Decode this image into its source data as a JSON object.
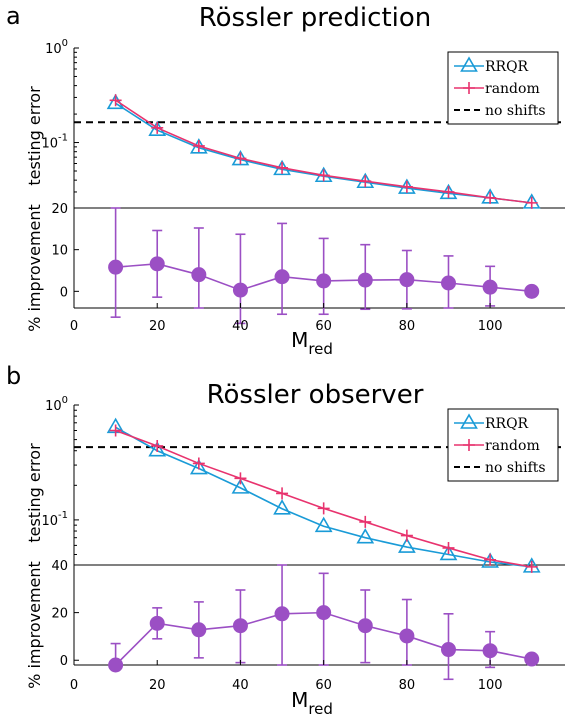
{
  "colors": {
    "rrqr": "#1a9bd7",
    "random": "#e8336e",
    "no_shifts": "#000000",
    "improvement": "#9b4fc4"
  },
  "chart_data": [
    {
      "type": "line",
      "panel_letter": "a",
      "title": "Rössler prediction",
      "x": [
        10,
        20,
        30,
        40,
        50,
        60,
        70,
        80,
        90,
        100,
        110
      ],
      "xlabel": "M",
      "xlabel_sub": "red",
      "xticks": [
        "0",
        "20",
        "40",
        "60",
        "80",
        "100"
      ],
      "xlim": [
        0,
        118
      ],
      "top": {
        "ylabel": "testing error",
        "yscale": "log",
        "ylim": [
          0.0203,
          1
        ],
        "ytick_labels": [
          {
            "base": "10",
            "exp": "0",
            "value": 1
          },
          {
            "base": "10",
            "exp": "-1",
            "value": 0.1
          }
        ],
        "series": [
          {
            "name": "RRQR",
            "color": "#1a9bd7",
            "marker": "triangle",
            "values": [
              0.26,
              0.135,
              0.088,
              0.066,
              0.052,
              0.044,
              0.038,
              0.033,
              0.029,
              0.026,
              0.023
            ]
          },
          {
            "name": "random",
            "color": "#e8336e",
            "marker": "plus",
            "values": [
              0.28,
              0.143,
              0.092,
              0.068,
              0.054,
              0.045,
              0.039,
              0.034,
              0.03,
              0.026,
              0.023
            ]
          },
          {
            "name": "no shifts",
            "color": "#000000",
            "style": "dashed",
            "constant": 0.164
          }
        ],
        "legend_position": "top-right"
      },
      "bottom": {
        "ylabel": "% improvement",
        "ylim": [
          -4,
          20
        ],
        "yticks": [
          0,
          10,
          20
        ],
        "series": [
          {
            "name": "",
            "color": "#9b4fc4",
            "values": [
              5.8,
              6.6,
              4.0,
              0.3,
              3.5,
              2.5,
              2.7,
              2.8,
              2.0,
              1.0,
              0.0
            ],
            "err_low": [
              -6.2,
              -1.4,
              -4.0,
              -7.7,
              -5.5,
              -5.5,
              -4.3,
              -4.2,
              -4.0,
              -3.5,
              0.0
            ],
            "err_high": [
              20.0,
              14.6,
              15.2,
              13.7,
              16.3,
              12.7,
              11.2,
              9.8,
              8.5,
              6.0,
              0.0
            ]
          }
        ]
      }
    },
    {
      "type": "line",
      "panel_letter": "b",
      "title": "Rössler observer",
      "x": [
        10,
        20,
        30,
        40,
        50,
        60,
        70,
        80,
        90,
        100,
        110
      ],
      "xlabel": "M",
      "xlabel_sub": "red",
      "xticks": [
        "0",
        "20",
        "40",
        "60",
        "80",
        "100"
      ],
      "xlim": [
        0,
        118
      ],
      "top": {
        "ylabel": "testing error",
        "yscale": "log",
        "ylim": [
          0.0405,
          1
        ],
        "ytick_labels": [
          {
            "base": "10",
            "exp": "0",
            "value": 1
          },
          {
            "base": "10",
            "exp": "-1",
            "value": 0.1
          }
        ],
        "series": [
          {
            "name": "RRQR",
            "color": "#1a9bd7",
            "marker": "triangle",
            "values": [
              0.64,
              0.4,
              0.28,
              0.19,
              0.125,
              0.088,
              0.07,
              0.058,
              0.05,
              0.043,
              0.039
            ]
          },
          {
            "name": "random",
            "color": "#e8336e",
            "marker": "plus",
            "values": [
              0.6,
              0.44,
              0.31,
              0.23,
              0.17,
              0.126,
              0.096,
              0.073,
              0.057,
              0.045,
              0.039
            ]
          },
          {
            "name": "no shifts",
            "color": "#000000",
            "style": "dashed",
            "constant": 0.43
          }
        ],
        "legend_position": "top-right"
      },
      "bottom": {
        "ylabel": "% improvement",
        "ylim": [
          -2,
          40
        ],
        "yticks": [
          0,
          20,
          40
        ],
        "series": [
          {
            "name": "",
            "color": "#9b4fc4",
            "values": [
              -2.0,
              15.5,
              12.8,
              14.5,
              19.5,
              20.0,
              14.5,
              10.2,
              4.5,
              4.0,
              0.5
            ],
            "err_low": [
              -2.0,
              9.0,
              1.0,
              -1.0,
              -2.0,
              -2.0,
              -1.0,
              -2.0,
              -8.0,
              -3.0,
              0.5
            ],
            "err_high": [
              7.0,
              22.0,
              24.5,
              29.5,
              40.0,
              36.5,
              29.5,
              25.5,
              19.5,
              12.0,
              0.5
            ]
          }
        ]
      }
    }
  ]
}
